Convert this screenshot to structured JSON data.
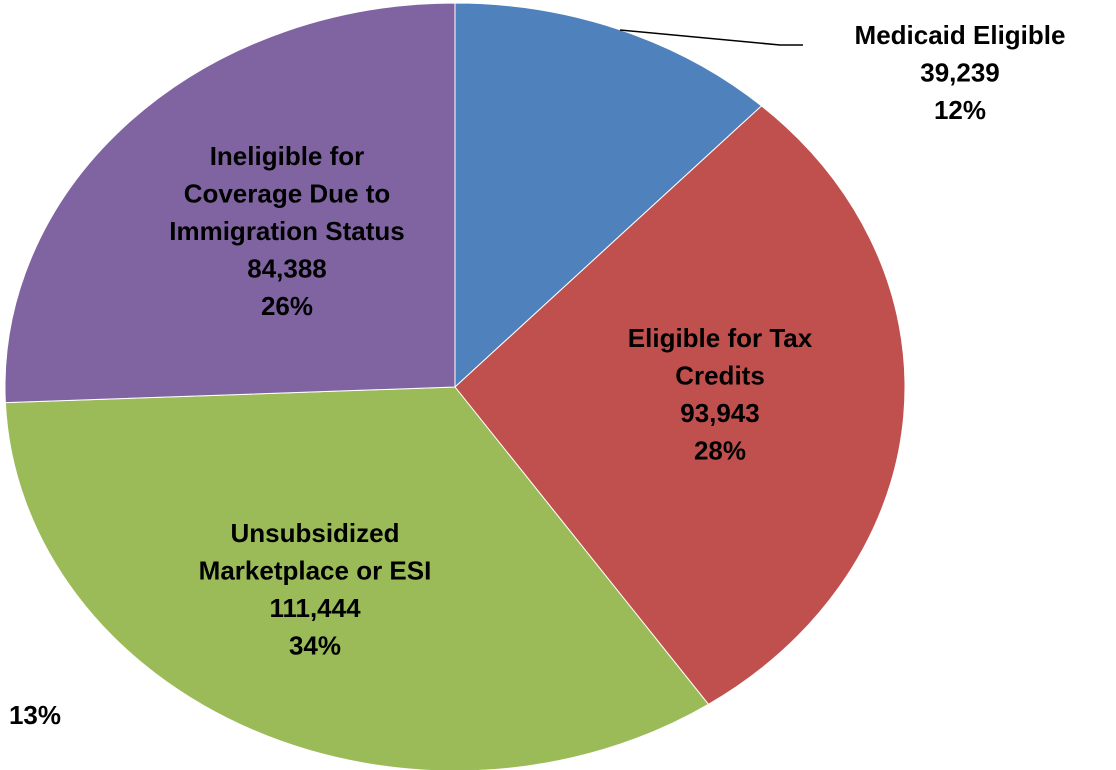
{
  "chart_data": {
    "type": "pie",
    "categories": [
      "Medicaid Eligible",
      "Eligible for Tax\nCredits",
      "Unsubsidized\nMarketplace or ESI",
      "Ineligible for\nCoverage Due to\nImmigration Status"
    ],
    "values": [
      39239,
      93943,
      111444,
      84388
    ],
    "value_labels": [
      "39,239",
      "93,943",
      "111,444",
      "84,388"
    ],
    "percent_labels": [
      "12%",
      "28%",
      "34%",
      "26%"
    ],
    "colors": [
      "#4f81bd",
      "#c0504d",
      "#9bbb59",
      "#8064a2"
    ],
    "annotations": [
      "13%"
    ]
  }
}
